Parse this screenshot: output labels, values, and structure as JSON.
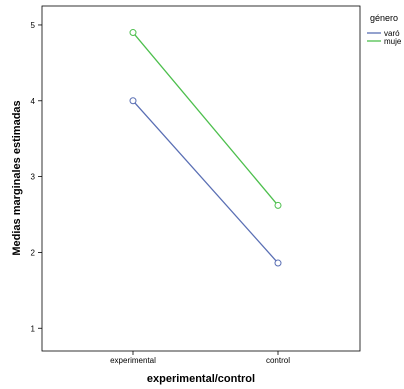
{
  "chart_data": {
    "type": "line",
    "xlabel": "experimental/control",
    "ylabel": "Medias marginales estimadas",
    "categories": [
      "experimental",
      "control"
    ],
    "y_ticks": [
      1,
      2,
      3,
      4,
      5
    ],
    "ylim": [
      0.7,
      5.25
    ],
    "grid": false,
    "legend": {
      "title": "género",
      "placement": "top-right",
      "entries": [
        "varó",
        "muje"
      ]
    },
    "series": [
      {
        "name": "varó",
        "values": [
          4.0,
          1.86
        ],
        "color": "#5a6fb4",
        "marker": "open-circle"
      },
      {
        "name": "muje",
        "values": [
          4.9,
          2.62
        ],
        "color": "#4dbf4d",
        "marker": "open-circle"
      }
    ]
  }
}
